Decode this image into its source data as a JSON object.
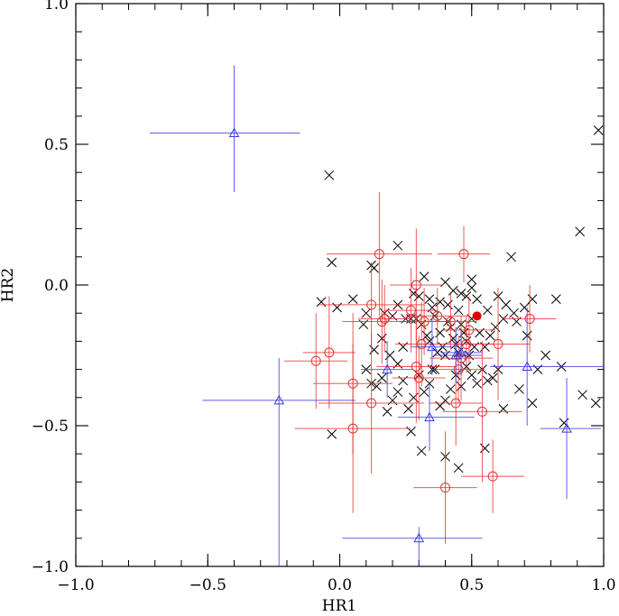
{
  "chart_data": {
    "type": "scatter",
    "title": "",
    "xlabel": "HR1",
    "ylabel": "HR2",
    "xlim": [
      -1.0,
      1.0
    ],
    "ylim": [
      -1.0,
      1.0
    ],
    "x_ticks": [
      -1.0,
      -0.5,
      0.0,
      0.5,
      1.0
    ],
    "y_ticks": [
      -1.0,
      -0.5,
      0.0,
      0.5,
      1.0
    ],
    "x_tick_labels": [
      "−1.0",
      "−0.5",
      "0.0",
      "0.5",
      "1.0"
    ],
    "y_tick_labels": [
      "−1.0",
      "−0.5",
      "0.0",
      "0.5",
      "1.0"
    ],
    "x_minor_step": 0.1,
    "y_minor_step": 0.1,
    "grid": false,
    "legend": "none",
    "series": [
      {
        "marker": "x",
        "color": "#000000",
        "points": [
          [
            -0.04,
            0.39
          ],
          [
            -0.03,
            0.08
          ],
          [
            0.22,
            0.14
          ],
          [
            0.12,
            0.07
          ],
          [
            0.13,
            0.06
          ],
          [
            0.65,
            0.1
          ],
          [
            0.91,
            0.19
          ],
          [
            0.98,
            0.55
          ],
          [
            -0.07,
            -0.06
          ],
          [
            0.05,
            -0.05
          ],
          [
            -0.01,
            -0.08
          ],
          [
            0.09,
            -0.14
          ],
          [
            0.1,
            -0.1
          ],
          [
            0.17,
            -0.1
          ],
          [
            0.2,
            -0.11
          ],
          [
            0.22,
            -0.07
          ],
          [
            0.28,
            -0.03
          ],
          [
            0.3,
            -0.04
          ],
          [
            0.32,
            0.03
          ],
          [
            0.34,
            -0.05
          ],
          [
            0.35,
            -0.08
          ],
          [
            0.38,
            -0.06
          ],
          [
            0.4,
            0.01
          ],
          [
            0.41,
            -0.07
          ],
          [
            0.43,
            -0.02
          ],
          [
            0.45,
            -0.09
          ],
          [
            0.46,
            -0.03
          ],
          [
            0.48,
            -0.04
          ],
          [
            0.5,
            0.02
          ],
          [
            0.5,
            -0.01
          ],
          [
            0.52,
            -0.05
          ],
          [
            0.56,
            -0.09
          ],
          [
            0.6,
            -0.04
          ],
          [
            0.63,
            -0.07
          ],
          [
            0.66,
            -0.1
          ],
          [
            0.7,
            -0.08
          ],
          [
            0.73,
            -0.05
          ],
          [
            0.82,
            -0.05
          ],
          [
            0.13,
            -0.23
          ],
          [
            0.16,
            -0.19
          ],
          [
            0.19,
            -0.25
          ],
          [
            0.22,
            -0.28
          ],
          [
            0.24,
            -0.22
          ],
          [
            0.25,
            -0.12
          ],
          [
            0.27,
            -0.12
          ],
          [
            0.29,
            -0.12
          ],
          [
            0.31,
            -0.14
          ],
          [
            0.33,
            -0.18
          ],
          [
            0.34,
            -0.2
          ],
          [
            0.36,
            -0.11
          ],
          [
            0.38,
            -0.17
          ],
          [
            0.39,
            -0.22
          ],
          [
            0.4,
            -0.25
          ],
          [
            0.41,
            -0.13
          ],
          [
            0.42,
            -0.15
          ],
          [
            0.43,
            -0.19
          ],
          [
            0.44,
            -0.21
          ],
          [
            0.45,
            -0.24
          ],
          [
            0.46,
            -0.14
          ],
          [
            0.47,
            -0.17
          ],
          [
            0.48,
            -0.2
          ],
          [
            0.49,
            -0.25
          ],
          [
            0.5,
            -0.12
          ],
          [
            0.51,
            -0.22
          ],
          [
            0.53,
            -0.17
          ],
          [
            0.55,
            -0.22
          ],
          [
            0.57,
            -0.18
          ],
          [
            0.59,
            -0.15
          ],
          [
            0.62,
            -0.12
          ],
          [
            0.67,
            -0.13
          ],
          [
            0.71,
            -0.18
          ],
          [
            0.78,
            -0.25
          ],
          [
            0.84,
            -0.29
          ],
          [
            0.92,
            -0.39
          ],
          [
            0.97,
            -0.42
          ],
          [
            0.85,
            -0.49
          ],
          [
            0.73,
            -0.42
          ],
          [
            0.62,
            -0.44
          ],
          [
            0.58,
            -0.33
          ],
          [
            0.54,
            -0.3
          ],
          [
            0.52,
            -0.35
          ],
          [
            0.5,
            -0.32
          ],
          [
            0.48,
            -0.29
          ],
          [
            0.46,
            -0.36
          ],
          [
            0.44,
            -0.32
          ],
          [
            0.42,
            -0.37
          ],
          [
            0.4,
            -0.41
          ],
          [
            0.38,
            -0.43
          ],
          [
            0.36,
            -0.3
          ],
          [
            0.34,
            -0.35
          ],
          [
            0.32,
            -0.38
          ],
          [
            0.3,
            -0.32
          ],
          [
            0.28,
            -0.4
          ],
          [
            0.26,
            -0.44
          ],
          [
            0.24,
            -0.34
          ],
          [
            0.22,
            -0.38
          ],
          [
            0.2,
            -0.41
          ],
          [
            0.18,
            -0.45
          ],
          [
            0.16,
            -0.33
          ],
          [
            0.14,
            -0.36
          ],
          [
            0.12,
            -0.35
          ],
          [
            0.1,
            -0.3
          ],
          [
            0.27,
            -0.52
          ],
          [
            0.31,
            -0.59
          ],
          [
            0.4,
            -0.61
          ],
          [
            0.45,
            -0.65
          ],
          [
            0.55,
            -0.58
          ],
          [
            -0.03,
            -0.53
          ],
          [
            0.35,
            -0.3
          ],
          [
            0.37,
            -0.24
          ],
          [
            0.56,
            -0.34
          ],
          [
            0.6,
            -0.3
          ],
          [
            0.68,
            -0.37
          ],
          [
            0.75,
            -0.3
          ]
        ]
      },
      {
        "marker": "circle",
        "color": "#e83030",
        "points": [
          [
            -0.09,
            -0.27,
            0.12,
            0.12,
            0.17,
            0.17
          ],
          [
            -0.04,
            -0.24,
            0.1,
            0.1,
            0.2,
            0.2
          ],
          [
            0.05,
            -0.35,
            0.15,
            0.15,
            0.25,
            0.25
          ],
          [
            0.05,
            -0.51,
            0.22,
            0.22,
            0.3,
            0.3
          ],
          [
            0.12,
            -0.42,
            0.2,
            0.2,
            0.25,
            0.25
          ],
          [
            0.12,
            -0.07,
            0.2,
            0.2,
            0.15,
            0.15
          ],
          [
            0.15,
            0.11,
            0.2,
            0.2,
            0.22,
            0.22
          ],
          [
            0.16,
            -0.13,
            0.15,
            0.15,
            0.15,
            0.15
          ],
          [
            0.17,
            -0.12,
            0.1,
            0.1,
            0.12,
            0.12
          ],
          [
            0.27,
            -0.09,
            0.1,
            0.1,
            0.15,
            0.15
          ],
          [
            0.29,
            0.0,
            0.1,
            0.1,
            0.2,
            0.2
          ],
          [
            0.29,
            -0.29,
            0.15,
            0.15,
            0.2,
            0.2
          ],
          [
            0.3,
            -0.33,
            0.1,
            0.1,
            0.15,
            0.15
          ],
          [
            0.31,
            -0.21,
            0.1,
            0.1,
            0.15,
            0.15
          ],
          [
            0.32,
            -0.13,
            0.1,
            0.1,
            0.12,
            0.12
          ],
          [
            0.37,
            -0.11,
            0.12,
            0.12,
            0.1,
            0.1
          ],
          [
            0.4,
            -0.72,
            0.12,
            0.12,
            0.2,
            0.2
          ],
          [
            0.42,
            -0.13,
            0.1,
            0.1,
            0.1,
            0.1
          ],
          [
            0.44,
            -0.42,
            0.1,
            0.1,
            0.15,
            0.15
          ],
          [
            0.45,
            -0.3,
            0.1,
            0.1,
            0.12,
            0.12
          ],
          [
            0.46,
            -0.26,
            0.12,
            0.12,
            0.15,
            0.15
          ],
          [
            0.47,
            0.11,
            0.1,
            0.1,
            0.1,
            0.1
          ],
          [
            0.48,
            -0.21,
            0.1,
            0.1,
            0.1,
            0.1
          ],
          [
            0.49,
            -0.16,
            0.1,
            0.1,
            0.12,
            0.12
          ],
          [
            0.54,
            -0.45,
            0.15,
            0.15,
            0.25,
            0.25
          ],
          [
            0.58,
            -0.68,
            0.12,
            0.12,
            0.13,
            0.13
          ],
          [
            0.6,
            -0.21,
            0.12,
            0.12,
            0.2,
            0.2
          ],
          [
            0.72,
            -0.12,
            0.1,
            0.1,
            0.12,
            0.12
          ]
        ]
      },
      {
        "marker": "triangle",
        "color": "#3a3ae0",
        "points": [
          [
            -0.4,
            0.54,
            0.32,
            0.25,
            0.21,
            0.24
          ],
          [
            -0.23,
            -0.41,
            0.29,
            0.29,
            0.59,
            0.15
          ],
          [
            0.18,
            -0.3,
            0.1,
            0.1,
            0.1,
            0.1
          ],
          [
            0.3,
            -0.9,
            0.29,
            0.24,
            0.1,
            0.04
          ],
          [
            0.34,
            -0.47,
            0.12,
            0.17,
            0.12,
            0.12
          ],
          [
            0.35,
            -0.22,
            0.08,
            0.1,
            0.1,
            0.1
          ],
          [
            0.44,
            -0.25,
            0.08,
            0.1,
            0.1,
            0.1
          ],
          [
            0.46,
            -0.24,
            0.08,
            0.08,
            0.08,
            0.08
          ],
          [
            0.71,
            -0.29,
            0.14,
            0.29,
            0.21,
            0.21
          ],
          [
            0.86,
            -0.51,
            0.1,
            0.13,
            0.25,
            0.18
          ]
        ]
      },
      {
        "marker": "filled-circle",
        "color": "#e00000",
        "points": [
          [
            0.52,
            -0.11
          ]
        ]
      }
    ]
  }
}
